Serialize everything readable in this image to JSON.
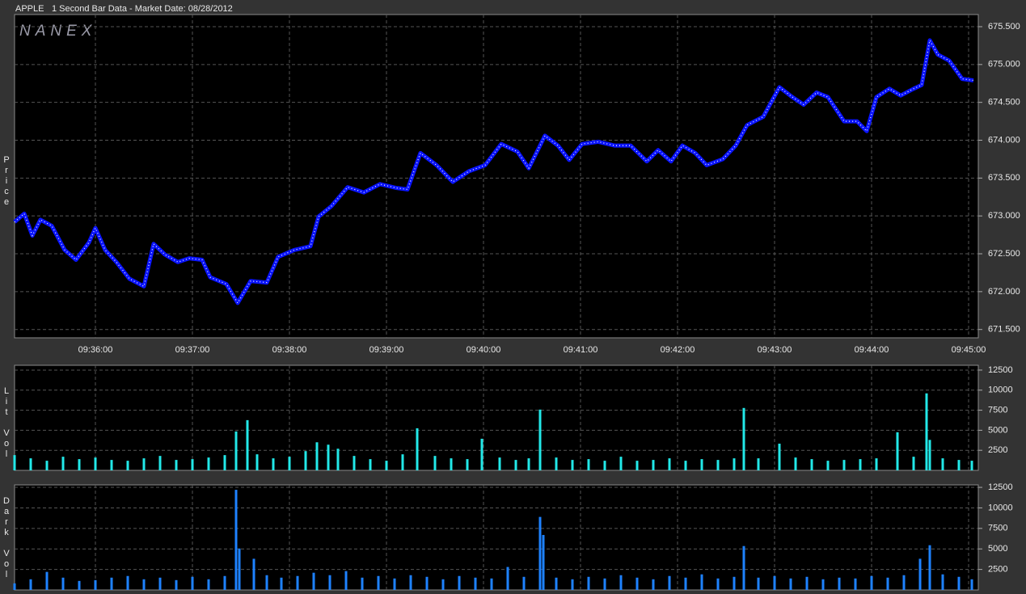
{
  "header": {
    "symbol": "APPLE",
    "description": "1 Second Bar Data - Market Date: 08/28/2012",
    "watermark": "NANEX"
  },
  "chart_data": [
    {
      "type": "line",
      "y_label": "Price",
      "xlim": [
        "09:35:10",
        "09:45:06"
      ],
      "xticks": [
        "09:36:00",
        "09:37:00",
        "09:38:00",
        "09:39:00",
        "09:40:00",
        "09:41:00",
        "09:42:00",
        "09:43:00",
        "09:44:00",
        "09:45:00"
      ],
      "ylim": [
        671.39,
        675.66
      ],
      "yticks": [
        {
          "value": 671.5,
          "label": "671.500"
        },
        {
          "value": 672,
          "label": "672.000"
        },
        {
          "value": 672.5,
          "label": "672.500"
        },
        {
          "value": 673,
          "label": "673.000"
        },
        {
          "value": 673.5,
          "label": "673.500"
        },
        {
          "value": 674,
          "label": "674.000"
        },
        {
          "value": 674.5,
          "label": "674.500"
        },
        {
          "value": 675,
          "label": "675.000"
        },
        {
          "value": 675.5,
          "label": "675.500"
        }
      ],
      "grid": true,
      "x": [
        "09:35:10",
        "09:35:16",
        "09:35:21",
        "09:35:26",
        "09:35:33",
        "09:35:41",
        "09:35:48",
        "09:35:56",
        "09:36:00",
        "09:36:06",
        "09:36:13",
        "09:36:21",
        "09:36:30",
        "09:36:36",
        "09:36:43",
        "09:36:51",
        "09:36:58",
        "09:37:06",
        "09:37:11",
        "09:37:21",
        "09:37:28",
        "09:37:36",
        "09:37:46",
        "09:37:53",
        "09:38:03",
        "09:38:13",
        "09:38:18",
        "09:38:26",
        "09:38:36",
        "09:38:46",
        "09:38:56",
        "09:39:06",
        "09:39:13",
        "09:39:21",
        "09:39:31",
        "09:39:41",
        "09:39:51",
        "09:40:01",
        "09:40:11",
        "09:40:21",
        "09:40:28",
        "09:40:38",
        "09:40:46",
        "09:40:53",
        "09:41:01",
        "09:41:11",
        "09:41:21",
        "09:41:31",
        "09:41:41",
        "09:41:48",
        "09:41:56",
        "09:42:03",
        "09:42:11",
        "09:42:18",
        "09:42:28",
        "09:42:36",
        "09:42:43",
        "09:42:53",
        "09:43:03",
        "09:43:11",
        "09:43:18",
        "09:43:26",
        "09:43:33",
        "09:43:43",
        "09:43:51",
        "09:43:57",
        "09:44:03",
        "09:44:11",
        "09:44:18",
        "09:44:26",
        "09:44:31",
        "09:44:36",
        "09:44:41",
        "09:44:48",
        "09:44:56",
        "09:45:03"
      ],
      "series": [
        {
          "color": "#0a14ff",
          "values": [
            672.92,
            673.03,
            672.74,
            672.95,
            672.87,
            672.55,
            672.42,
            672.65,
            672.84,
            672.55,
            672.39,
            672.17,
            672.07,
            672.63,
            672.49,
            672.39,
            672.44,
            672.42,
            672.19,
            672.1,
            671.85,
            672.14,
            672.12,
            672.46,
            672.55,
            672.6,
            672.99,
            673.13,
            673.38,
            673.31,
            673.42,
            673.37,
            673.35,
            673.83,
            673.67,
            673.45,
            673.59,
            673.67,
            673.95,
            673.85,
            673.63,
            674.06,
            673.93,
            673.74,
            673.95,
            673.98,
            673.93,
            673.93,
            673.72,
            673.87,
            673.72,
            673.93,
            673.83,
            673.67,
            673.75,
            673.93,
            674.2,
            674.31,
            674.7,
            674.57,
            674.47,
            674.63,
            674.57,
            674.25,
            674.25,
            674.12,
            674.57,
            674.68,
            674.59,
            674.68,
            674.73,
            675.32,
            675.13,
            675.05,
            674.81,
            674.79
          ]
        }
      ]
    },
    {
      "type": "bar",
      "y_label": "Lit Vol",
      "xlim": [
        "09:35:10",
        "09:45:06"
      ],
      "ylim": [
        0,
        13100
      ],
      "yticks": [
        2500,
        5000,
        7500,
        10000,
        12500
      ],
      "grid": true,
      "color": "#22e8e8",
      "x": [
        "09:35:10",
        "09:35:20",
        "09:35:30",
        "09:35:40",
        "09:35:50",
        "09:36:00",
        "09:36:10",
        "09:36:20",
        "09:36:30",
        "09:36:40",
        "09:36:50",
        "09:37:00",
        "09:37:10",
        "09:37:20",
        "09:37:27",
        "09:37:34",
        "09:37:40",
        "09:37:50",
        "09:38:00",
        "09:38:10",
        "09:38:17",
        "09:38:24",
        "09:38:30",
        "09:38:40",
        "09:38:50",
        "09:39:00",
        "09:39:10",
        "09:39:19",
        "09:39:30",
        "09:39:40",
        "09:39:50",
        "09:39:59",
        "09:40:10",
        "09:40:20",
        "09:40:28",
        "09:40:35",
        "09:40:45",
        "09:40:55",
        "09:41:05",
        "09:41:15",
        "09:41:25",
        "09:41:35",
        "09:41:45",
        "09:41:55",
        "09:42:05",
        "09:42:15",
        "09:42:25",
        "09:42:35",
        "09:42:41",
        "09:42:50",
        "09:43:03",
        "09:43:13",
        "09:43:23",
        "09:43:33",
        "09:43:43",
        "09:43:53",
        "09:44:03",
        "09:44:16",
        "09:44:26",
        "09:44:34",
        "09:44:36",
        "09:44:44",
        "09:44:54",
        "09:45:02"
      ],
      "values": [
        1900,
        1500,
        1200,
        1700,
        1400,
        1600,
        1300,
        1200,
        1500,
        1800,
        1300,
        1400,
        1600,
        1900,
        4850,
        6260,
        2000,
        1500,
        1700,
        2400,
        3500,
        3200,
        2700,
        1800,
        1400,
        1200,
        2000,
        5250,
        1800,
        1500,
        1400,
        3940,
        1600,
        1300,
        1500,
        7575,
        1600,
        1300,
        1400,
        1200,
        1700,
        1200,
        1300,
        1500,
        1200,
        1400,
        1300,
        1500,
        7780,
        1500,
        3330,
        1600,
        1400,
        1200,
        1300,
        1400,
        1500,
        4750,
        1700,
        9600,
        3800,
        1500,
        1300,
        1200
      ]
    },
    {
      "type": "bar",
      "y_label": "Dark Vol",
      "xlim": [
        "09:35:10",
        "09:45:06"
      ],
      "ylim": [
        0,
        12800
      ],
      "yticks": [
        2500,
        5000,
        7500,
        10000,
        12500
      ],
      "grid": true,
      "color": "#1e82ff",
      "x": [
        "09:35:10",
        "09:35:20",
        "09:35:30",
        "09:35:40",
        "09:35:50",
        "09:36:00",
        "09:36:10",
        "09:36:20",
        "09:36:30",
        "09:36:40",
        "09:36:50",
        "09:37:00",
        "09:37:10",
        "09:37:20",
        "09:37:27",
        "09:37:29",
        "09:37:38",
        "09:37:46",
        "09:37:55",
        "09:38:05",
        "09:38:15",
        "09:38:25",
        "09:38:35",
        "09:38:45",
        "09:38:55",
        "09:39:05",
        "09:39:15",
        "09:39:25",
        "09:39:35",
        "09:39:45",
        "09:39:55",
        "09:40:05",
        "09:40:15",
        "09:40:25",
        "09:40:35",
        "09:40:37",
        "09:40:45",
        "09:40:55",
        "09:41:05",
        "09:41:15",
        "09:41:25",
        "09:41:35",
        "09:41:45",
        "09:41:55",
        "09:42:05",
        "09:42:15",
        "09:42:25",
        "09:42:35",
        "09:42:41",
        "09:42:50",
        "09:43:00",
        "09:43:10",
        "09:43:20",
        "09:43:30",
        "09:43:40",
        "09:43:50",
        "09:44:00",
        "09:44:10",
        "09:44:20",
        "09:44:30",
        "09:44:36",
        "09:44:44",
        "09:44:54",
        "09:45:02"
      ],
      "values": [
        800,
        1300,
        2200,
        1500,
        1100,
        1200,
        1500,
        1700,
        1300,
        1500,
        1200,
        1600,
        1300,
        1700,
        12200,
        5050,
        3800,
        1800,
        1500,
        1700,
        2100,
        1800,
        2300,
        1500,
        1700,
        1400,
        1800,
        1600,
        1300,
        1700,
        1500,
        1400,
        2800,
        1600,
        8900,
        6700,
        1500,
        1300,
        1600,
        1400,
        1800,
        1500,
        1300,
        1700,
        1500,
        1900,
        1400,
        1600,
        5350,
        1500,
        1700,
        1400,
        1600,
        1300,
        1500,
        1400,
        1700,
        1500,
        1800,
        3800,
        5450,
        1900,
        1600,
        1300
      ]
    }
  ]
}
